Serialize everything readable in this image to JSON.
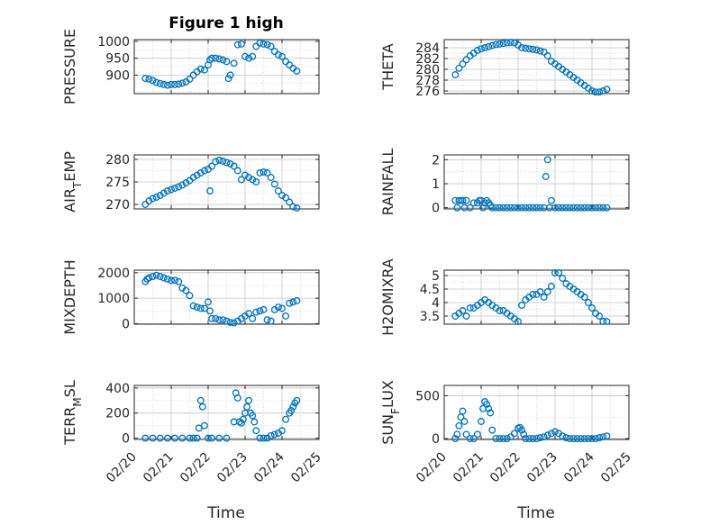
{
  "figure": {
    "title": "Figure 1 high",
    "marker_color": "#0072BD",
    "x_ticks": [
      "02/20",
      "02/21",
      "02/22",
      "02/23",
      "02/24",
      "02/25"
    ],
    "x_label": "Time"
  },
  "chart_data": [
    {
      "type": "scatter",
      "ylabel": "PRESSURE",
      "xlim": [
        "02/20",
        "02/25"
      ],
      "ylim": [
        845,
        1005
      ],
      "yticks": [
        900,
        950,
        1000
      ],
      "grid": true,
      "series": [
        {
          "x": [
            0.3,
            0.4,
            0.5,
            0.6,
            0.7,
            0.8,
            0.9,
            1.0,
            1.1,
            1.2,
            1.3,
            1.4,
            1.5,
            1.6,
            1.7,
            1.8,
            1.9,
            2.0,
            2.05,
            2.1,
            2.2,
            2.3,
            2.4,
            2.5,
            2.55,
            2.6,
            2.7,
            2.8,
            2.9,
            3.0,
            3.1,
            3.2,
            3.3,
            3.4,
            3.5,
            3.6,
            3.7,
            3.8,
            3.9,
            4.0,
            4.1,
            4.2,
            4.3,
            4.4
          ],
          "y": [
            890,
            888,
            884,
            878,
            875,
            872,
            870,
            872,
            872,
            873,
            876,
            880,
            888,
            900,
            910,
            918,
            915,
            930,
            945,
            950,
            950,
            948,
            945,
            940,
            890,
            900,
            935,
            990,
            992,
            955,
            950,
            955,
            985,
            995,
            992,
            990,
            985,
            970,
            960,
            955,
            940,
            930,
            920,
            912
          ]
        }
      ]
    },
    {
      "type": "scatter",
      "ylabel": "THETA",
      "xlim": [
        "02/20",
        "02/25"
      ],
      "ylim": [
        275.5,
        285.5
      ],
      "yticks": [
        276,
        278,
        280,
        282,
        284
      ],
      "grid": true,
      "series": [
        {
          "x": [
            0.3,
            0.4,
            0.5,
            0.6,
            0.7,
            0.8,
            0.9,
            1.0,
            1.1,
            1.2,
            1.3,
            1.4,
            1.5,
            1.6,
            1.7,
            1.8,
            1.9,
            2.0,
            2.1,
            2.2,
            2.3,
            2.4,
            2.5,
            2.6,
            2.7,
            2.8,
            2.9,
            3.0,
            3.1,
            3.2,
            3.3,
            3.4,
            3.5,
            3.6,
            3.7,
            3.8,
            3.9,
            4.0,
            4.1,
            4.2,
            4.3,
            4.4
          ],
          "y": [
            279,
            280.2,
            281,
            281.8,
            282.5,
            283,
            283.5,
            283.8,
            284,
            284.2,
            284.4,
            284.6,
            284.7,
            284.8,
            284.9,
            285,
            284.9,
            284.5,
            284,
            283.9,
            283.8,
            283.7,
            283.6,
            283.4,
            283.2,
            282.5,
            281.5,
            281,
            280.5,
            280,
            279.5,
            279,
            278.5,
            278,
            277.5,
            277,
            276.5,
            276,
            275.8,
            275.8,
            276,
            276.3
          ]
        }
      ]
    },
    {
      "type": "scatter",
      "ylabel": "AIR_TEMP",
      "xlim": [
        "02/20",
        "02/25"
      ],
      "ylim": [
        269,
        281
      ],
      "yticks": [
        270,
        275,
        280
      ],
      "grid": true,
      "series": [
        {
          "x": [
            0.3,
            0.4,
            0.5,
            0.6,
            0.7,
            0.8,
            0.9,
            1.0,
            1.1,
            1.2,
            1.3,
            1.4,
            1.5,
            1.6,
            1.7,
            1.8,
            1.9,
            2.0,
            2.05,
            2.1,
            2.2,
            2.3,
            2.4,
            2.5,
            2.6,
            2.7,
            2.8,
            2.9,
            3.0,
            3.1,
            3.2,
            3.3,
            3.4,
            3.5,
            3.6,
            3.7,
            3.8,
            3.9,
            4.0,
            4.1,
            4.2,
            4.3,
            4.4
          ],
          "y": [
            270,
            270.8,
            271.3,
            271.6,
            272,
            272.5,
            273,
            273.3,
            273.6,
            273.9,
            274.3,
            274.8,
            275.3,
            276,
            276.5,
            277,
            277.5,
            277.8,
            273,
            278.5,
            279.5,
            279.8,
            279.6,
            279.3,
            279,
            278.5,
            277.5,
            275.5,
            276.5,
            276,
            275.5,
            275,
            277,
            277.2,
            277,
            276,
            274.5,
            273,
            272,
            271.5,
            270.5,
            269.5,
            269.2
          ]
        }
      ]
    },
    {
      "type": "scatter",
      "ylabel": "RAINFALL",
      "xlim": [
        "02/20",
        "02/25"
      ],
      "ylim": [
        -0.05,
        2.2
      ],
      "yticks": [
        0,
        1,
        2
      ],
      "grid": true,
      "series": [
        {
          "x": [
            0.3,
            0.35,
            0.4,
            0.45,
            0.5,
            0.55,
            0.6,
            0.7,
            0.8,
            0.9,
            0.95,
            1.0,
            1.05,
            1.1,
            1.15,
            1.2,
            1.25,
            1.3,
            1.4,
            1.5,
            1.6,
            1.7,
            1.8,
            1.9,
            2.0,
            2.1,
            2.2,
            2.3,
            2.4,
            2.5,
            2.6,
            2.7,
            2.75,
            2.8,
            2.85,
            2.9,
            3.0,
            3.1,
            3.2,
            3.3,
            3.4,
            3.5,
            3.6,
            3.7,
            3.8,
            3.9,
            4.0,
            4.1,
            4.2,
            4.3,
            4.4
          ],
          "y": [
            0.3,
            0,
            0.3,
            0.3,
            0.3,
            0,
            0.3,
            0,
            0.2,
            0.2,
            0.3,
            0.3,
            0,
            0.2,
            0.3,
            0.2,
            0.1,
            0,
            0,
            0,
            0,
            0,
            0,
            0,
            0,
            0,
            0,
            0,
            0,
            0,
            0,
            0,
            1.3,
            2,
            0,
            0.3,
            0,
            0,
            0,
            0,
            0,
            0,
            0,
            0,
            0,
            0,
            0,
            0,
            0,
            0,
            0
          ]
        }
      ]
    },
    {
      "type": "scatter",
      "ylabel": "MIXDEPTH",
      "xlim": [
        "02/20",
        "02/25"
      ],
      "ylim": [
        -20,
        2100
      ],
      "yticks": [
        0,
        1000,
        2000
      ],
      "grid": true,
      "series": [
        {
          "x": [
            0.3,
            0.35,
            0.4,
            0.5,
            0.6,
            0.7,
            0.8,
            0.9,
            1.0,
            1.1,
            1.2,
            1.3,
            1.4,
            1.5,
            1.6,
            1.7,
            1.8,
            1.9,
            2.0,
            2.05,
            2.1,
            2.2,
            2.3,
            2.4,
            2.5,
            2.6,
            2.7,
            2.8,
            2.9,
            3.0,
            3.1,
            3.2,
            3.3,
            3.4,
            3.5,
            3.6,
            3.7,
            3.8,
            3.9,
            4.0,
            4.1,
            4.2,
            4.3,
            4.4
          ],
          "y": [
            1650,
            1750,
            1800,
            1850,
            1900,
            1850,
            1800,
            1750,
            1700,
            1700,
            1650,
            1400,
            1300,
            1100,
            700,
            650,
            600,
            600,
            850,
            500,
            200,
            200,
            150,
            150,
            100,
            50,
            30,
            100,
            200,
            300,
            400,
            200,
            450,
            500,
            550,
            150,
            100,
            550,
            650,
            600,
            300,
            800,
            850,
            900
          ]
        }
      ]
    },
    {
      "type": "scatter",
      "ylabel": "H2OMIXRA",
      "xlim": [
        "02/20",
        "02/25"
      ],
      "ylim": [
        3.2,
        5.2
      ],
      "yticks": [
        3.5,
        4,
        4.5,
        5
      ],
      "grid": true,
      "series": [
        {
          "x": [
            0.3,
            0.4,
            0.5,
            0.6,
            0.7,
            0.8,
            0.9,
            1.0,
            1.1,
            1.2,
            1.3,
            1.4,
            1.5,
            1.6,
            1.7,
            1.8,
            1.9,
            2.0,
            2.1,
            2.2,
            2.3,
            2.4,
            2.5,
            2.6,
            2.7,
            2.8,
            2.9,
            3.0,
            3.1,
            3.2,
            3.3,
            3.4,
            3.5,
            3.6,
            3.7,
            3.8,
            3.9,
            4.0,
            4.1,
            4.2,
            4.3,
            4.4
          ],
          "y": [
            3.5,
            3.6,
            3.7,
            3.5,
            3.8,
            3.8,
            3.9,
            4.0,
            4.1,
            4.0,
            3.9,
            3.8,
            3.7,
            3.7,
            3.6,
            3.5,
            3.4,
            3.3,
            3.9,
            4.1,
            4.2,
            4.3,
            4.3,
            4.4,
            4.2,
            4.4,
            4.6,
            5.1,
            5.1,
            4.9,
            4.7,
            4.6,
            4.5,
            4.4,
            4.3,
            4.2,
            4.0,
            3.8,
            3.6,
            3.5,
            3.3,
            3.3
          ]
        }
      ]
    },
    {
      "type": "scatter",
      "ylabel": "TERR_MSL",
      "xlim": [
        "02/20",
        "02/25"
      ],
      "ylim": [
        -10,
        420
      ],
      "yticks": [
        0,
        200,
        400
      ],
      "grid": true,
      "series": [
        {
          "x": [
            0.3,
            0.5,
            0.7,
            0.9,
            1.1,
            1.3,
            1.5,
            1.6,
            1.7,
            1.75,
            1.8,
            1.85,
            1.9,
            2.0,
            2.1,
            2.3,
            2.5,
            2.7,
            2.75,
            2.8,
            2.85,
            2.9,
            2.95,
            3.0,
            3.05,
            3.1,
            3.15,
            3.2,
            3.25,
            3.3,
            3.4,
            3.5,
            3.6,
            3.7,
            3.8,
            3.9,
            4.0,
            4.1,
            4.2,
            4.25,
            4.3,
            4.35,
            4.4
          ],
          "y": [
            0,
            0,
            0,
            0,
            0,
            0,
            0,
            0,
            0,
            80,
            300,
            250,
            100,
            0,
            0,
            0,
            0,
            130,
            360,
            320,
            130,
            120,
            150,
            200,
            250,
            300,
            200,
            180,
            130,
            60,
            0,
            0,
            0,
            20,
            30,
            40,
            60,
            150,
            200,
            220,
            250,
            280,
            300
          ]
        }
      ]
    },
    {
      "type": "scatter",
      "ylabel": "SUN_FLUX",
      "xlim": [
        "02/20",
        "02/25"
      ],
      "ylim": [
        -10,
        620
      ],
      "yticks": [
        0,
        500
      ],
      "grid": true,
      "series": [
        {
          "x": [
            0.3,
            0.35,
            0.4,
            0.45,
            0.5,
            0.55,
            0.6,
            0.7,
            0.8,
            0.9,
            1.0,
            1.05,
            1.1,
            1.15,
            1.2,
            1.25,
            1.3,
            1.4,
            1.5,
            1.6,
            1.7,
            1.8,
            1.9,
            2.0,
            2.05,
            2.1,
            2.15,
            2.2,
            2.3,
            2.4,
            2.5,
            2.6,
            2.7,
            2.8,
            2.9,
            3.0,
            3.1,
            3.2,
            3.3,
            3.4,
            3.5,
            3.6,
            3.7,
            3.8,
            3.9,
            4.0,
            4.1,
            4.2,
            4.3,
            4.4
          ],
          "y": [
            0,
            50,
            150,
            250,
            320,
            200,
            50,
            0,
            0,
            50,
            200,
            350,
            430,
            400,
            350,
            300,
            100,
            0,
            0,
            0,
            0,
            20,
            60,
            120,
            130,
            100,
            50,
            0,
            0,
            0,
            0,
            10,
            20,
            40,
            60,
            80,
            60,
            30,
            10,
            0,
            0,
            0,
            0,
            0,
            0,
            0,
            0,
            10,
            20,
            30
          ]
        }
      ]
    }
  ]
}
